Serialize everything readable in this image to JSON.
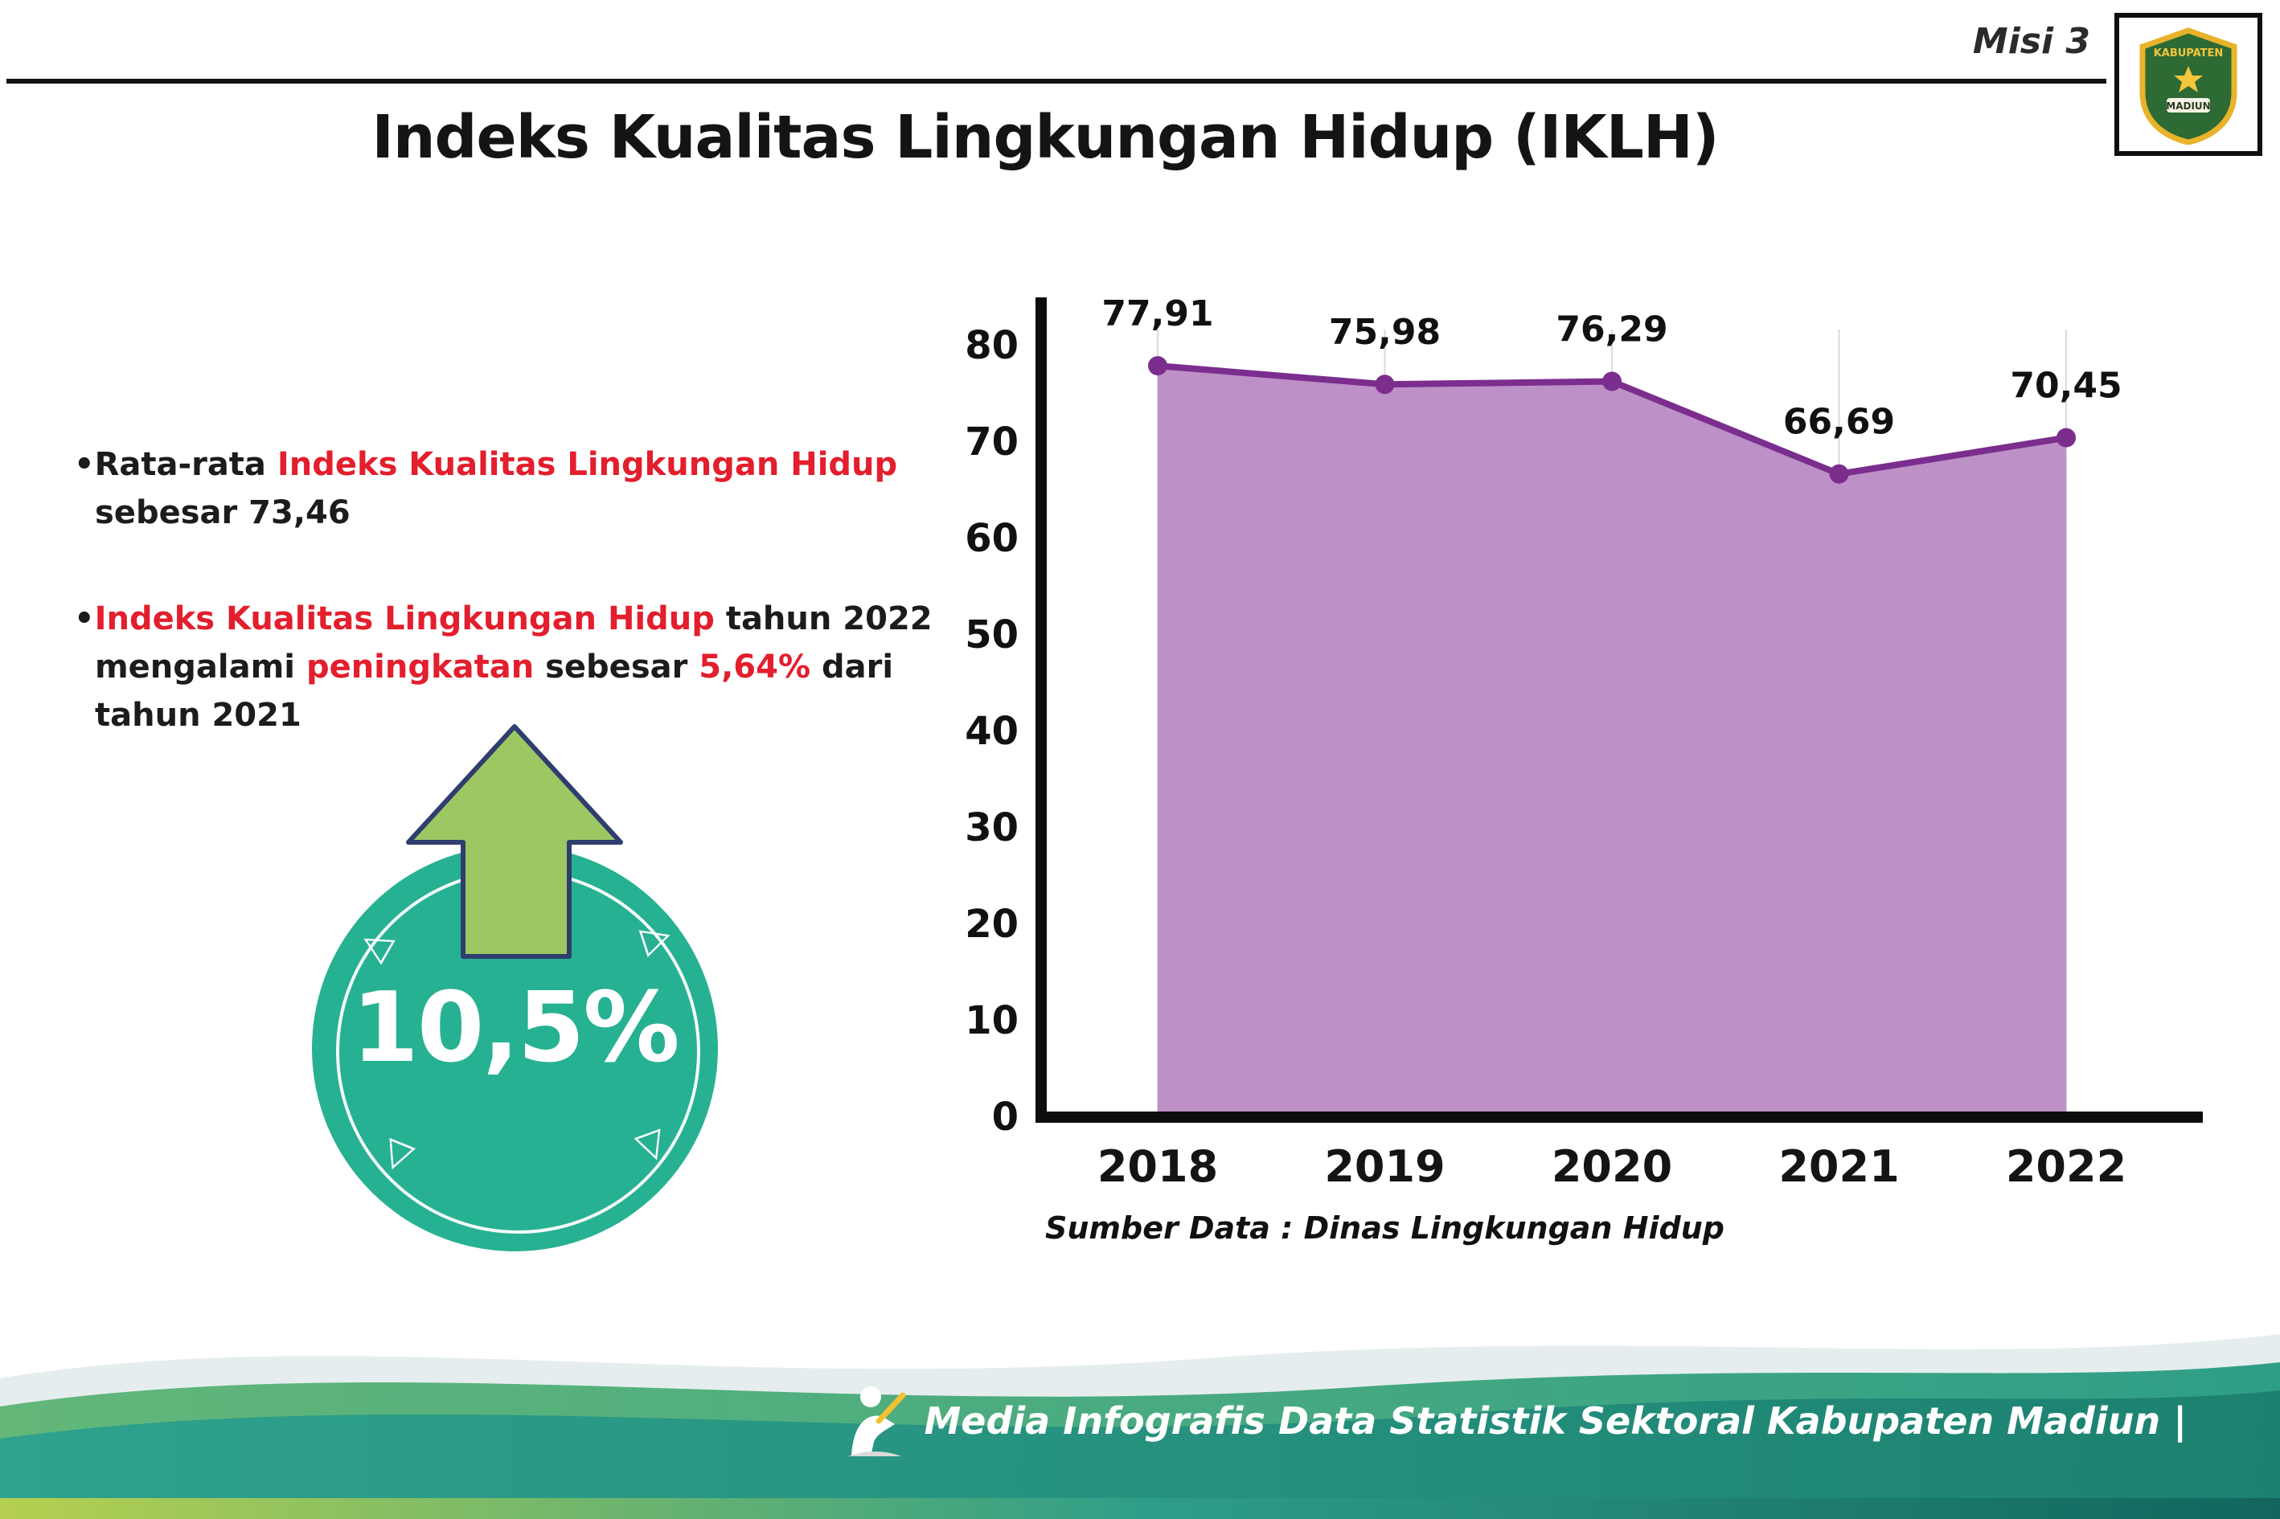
{
  "header": {
    "misi_label": "Misi 3",
    "title": "Indeks Kualitas Lingkungan Hidup (IKLH)",
    "logo_top": "KABUPATEN",
    "logo_bottom": "MADIUN"
  },
  "bullets": {
    "b1": {
      "line1_pre": "Rata-rata ",
      "line1_red": "Indeks Kualitas Lingkungan Hidup",
      "line2": "sebesar 73,46"
    },
    "b2": {
      "l1_red": "Indeks Kualitas Lingkungan Hidup",
      "l1": " tahun 2022",
      "l2a": "mengalami ",
      "l2_red": "peningkatan",
      "l2b": " sebesar ",
      "l2_red2": "5,64%",
      "l2c": " dari",
      "l3": "tahun 2021"
    }
  },
  "badge": {
    "value": "10,5%",
    "decorations": [
      "◁",
      "▷",
      "▽",
      "▽"
    ]
  },
  "chart_data": {
    "type": "area",
    "categories": [
      "2018",
      "2019",
      "2020",
      "2021",
      "2022"
    ],
    "values": [
      77.91,
      75.98,
      76.29,
      66.69,
      70.45
    ],
    "value_labels": [
      "77,91",
      "75,98",
      "76,29",
      "66,69",
      "70,45"
    ],
    "title": "",
    "xlabel": "",
    "ylabel": "",
    "ylim": [
      0,
      80
    ],
    "yticks": [
      0,
      10,
      20,
      30,
      40,
      50,
      60,
      70,
      80
    ],
    "grid": "vertical-light",
    "legend": "none",
    "fill_color": "#bd90c7",
    "line_color": "#7b2e8e",
    "source": "Sumber Data : Dinas Lingkungan Hidup"
  },
  "footer": {
    "caption": "Media Infografis Data Statistik Sektoral Kabupaten Madiun |"
  },
  "colors": {
    "accent_red": "#e31e2d",
    "badge_teal": "#27b193",
    "arrow_green": "#9dc763",
    "footer_teal": "#2ea28d",
    "footer_lime": "#b6d04f"
  }
}
